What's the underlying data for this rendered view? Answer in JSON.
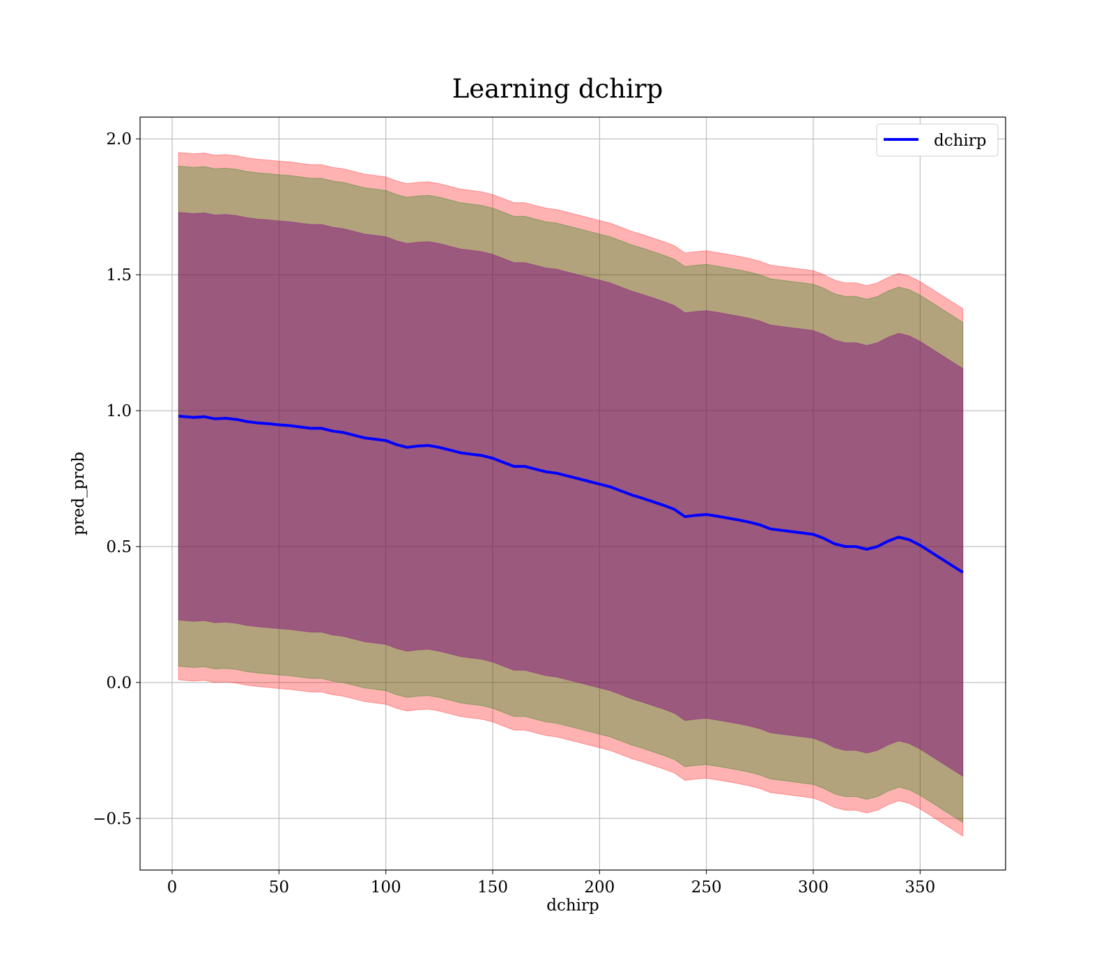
{
  "chart_data": {
    "type": "line",
    "title": "Learning dchirp",
    "xlabel": "dchirp",
    "ylabel": "pred_prob",
    "xlim": [
      -15,
      390
    ],
    "ylim": [
      -0.69,
      2.08
    ],
    "xticks": [
      0,
      50,
      100,
      150,
      200,
      250,
      300,
      350
    ],
    "yticks": [
      -0.5,
      0.0,
      0.5,
      1.0,
      1.5,
      2.0
    ],
    "xtick_labels": [
      "0",
      "50",
      "100",
      "150",
      "200",
      "250",
      "300",
      "350"
    ],
    "ytick_labels": [
      "−0.5",
      "0.0",
      "0.5",
      "1.0",
      "1.5",
      "2.0"
    ],
    "grid": true,
    "legend_position": "top-right",
    "series": [
      {
        "name": "dchirp",
        "color": "#0000ff",
        "x": [
          3,
          10,
          15,
          20,
          25,
          30,
          35,
          40,
          45,
          50,
          55,
          60,
          65,
          70,
          75,
          80,
          85,
          90,
          95,
          100,
          105,
          110,
          115,
          120,
          125,
          130,
          135,
          140,
          145,
          150,
          155,
          160,
          165,
          170,
          175,
          180,
          185,
          190,
          195,
          200,
          205,
          210,
          215,
          220,
          225,
          230,
          235,
          240,
          245,
          250,
          255,
          260,
          265,
          270,
          275,
          280,
          285,
          290,
          295,
          300,
          305,
          310,
          315,
          320,
          325,
          330,
          335,
          340,
          345,
          350,
          355,
          360,
          365,
          370
        ],
        "values": [
          0.98,
          0.975,
          0.978,
          0.97,
          0.972,
          0.968,
          0.96,
          0.955,
          0.952,
          0.948,
          0.945,
          0.94,
          0.935,
          0.935,
          0.925,
          0.92,
          0.91,
          0.9,
          0.895,
          0.89,
          0.875,
          0.865,
          0.87,
          0.872,
          0.865,
          0.855,
          0.845,
          0.84,
          0.835,
          0.825,
          0.81,
          0.795,
          0.795,
          0.785,
          0.775,
          0.77,
          0.76,
          0.75,
          0.74,
          0.73,
          0.72,
          0.705,
          0.69,
          0.678,
          0.665,
          0.652,
          0.637,
          0.61,
          0.615,
          0.618,
          0.612,
          0.605,
          0.598,
          0.59,
          0.58,
          0.565,
          0.56,
          0.555,
          0.55,
          0.545,
          0.53,
          0.51,
          0.5,
          0.5,
          0.49,
          0.5,
          0.52,
          0.535,
          0.525,
          0.505,
          0.48,
          0.455,
          0.43,
          0.405
        ]
      }
    ],
    "bands": [
      {
        "color": "#ff0000",
        "opacity": 0.3,
        "upper_offset": 0.97,
        "lower_offset": -0.97
      },
      {
        "color": "#008000",
        "opacity": 0.3,
        "upper_offset": 0.92,
        "lower_offset": -0.92
      },
      {
        "color": "#800080",
        "opacity": 0.45,
        "upper_offset": 0.75,
        "lower_offset": -0.75
      }
    ]
  }
}
